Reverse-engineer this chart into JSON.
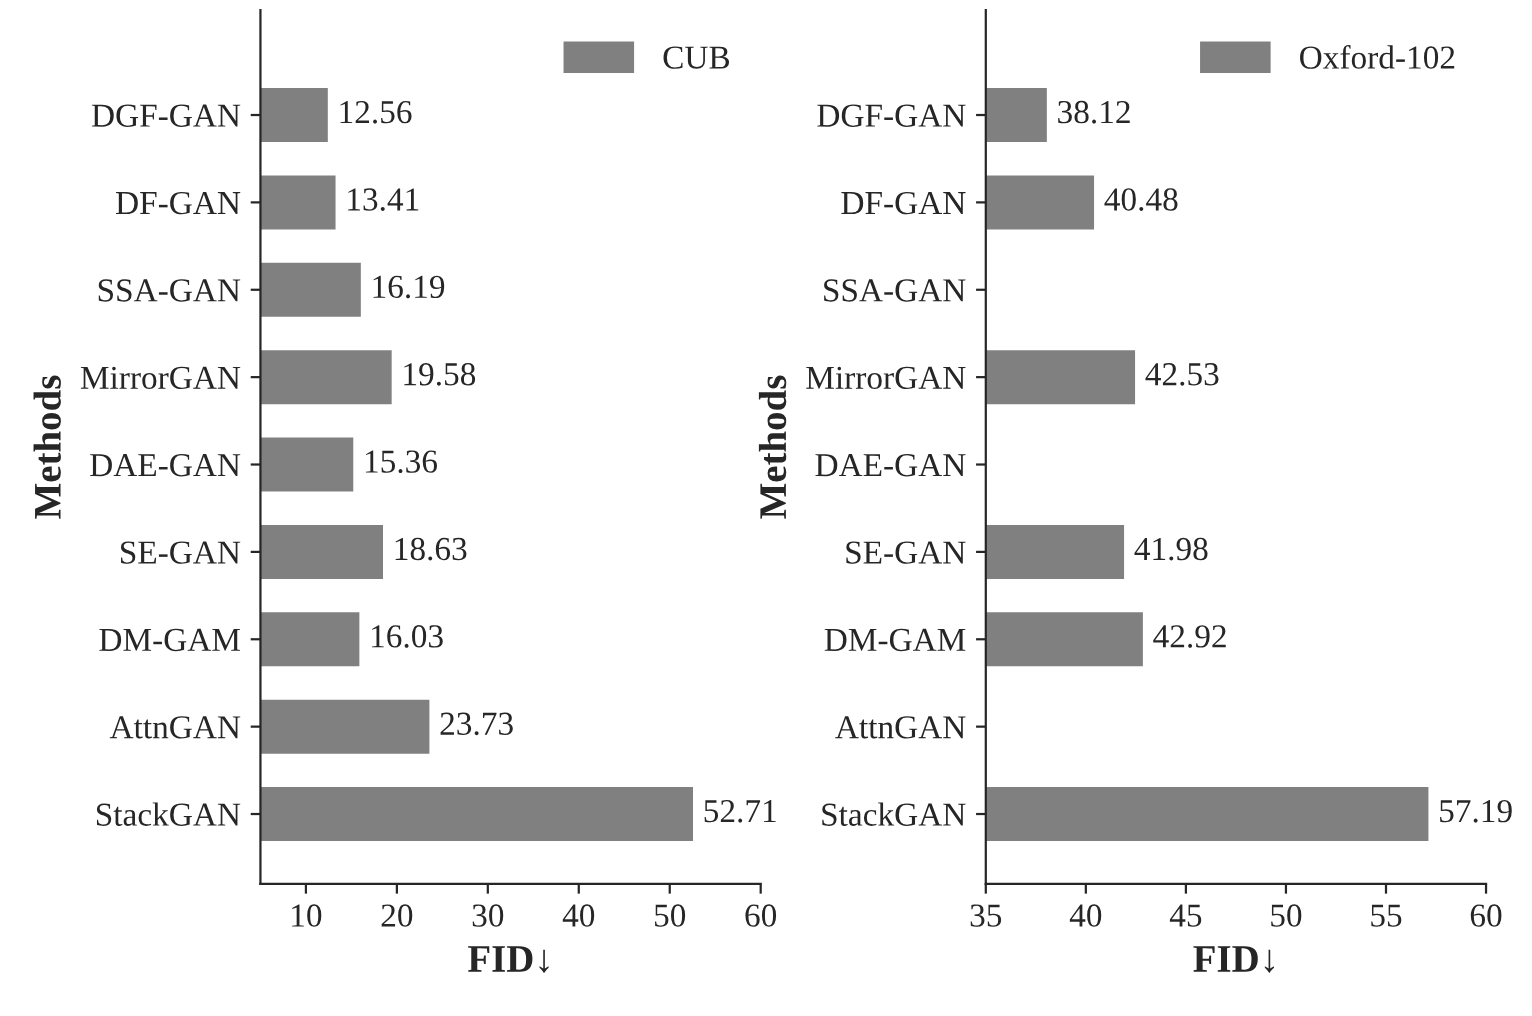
{
  "chart_data": [
    {
      "type": "bar",
      "orientation": "horizontal",
      "categories": [
        "DGF-GAN",
        "DF-GAN",
        "SSA-GAN",
        "MirrorGAN",
        "DAE-GAN",
        "SE-GAN",
        "DM-GAM",
        "AttnGAN",
        "StackGAN"
      ],
      "series": [
        {
          "name": "CUB",
          "color": "#808080",
          "values": [
            12.56,
            13.41,
            16.19,
            19.58,
            15.36,
            18.63,
            16.03,
            23.73,
            52.71
          ]
        }
      ],
      "xlim": [
        5,
        60
      ],
      "xticks": [
        10,
        20,
        30,
        40,
        50,
        60
      ],
      "xlabel": "FID↓",
      "ylabel": "Methods",
      "data_labels": true,
      "legend": "top right",
      "grid": false
    },
    {
      "type": "bar",
      "orientation": "horizontal",
      "categories": [
        "DGF-GAN",
        "DF-GAN",
        "SSA-GAN",
        "MirrorGAN",
        "DAE-GAN",
        "SE-GAN",
        "DM-GAM",
        "AttnGAN",
        "StackGAN"
      ],
      "series": [
        {
          "name": "Oxford-102",
          "color": "#808080",
          "values": [
            38.12,
            40.48,
            null,
            42.53,
            null,
            41.98,
            42.92,
            null,
            57.19
          ]
        }
      ],
      "xlim": [
        35,
        60
      ],
      "xticks": [
        35,
        40,
        45,
        50,
        55,
        60
      ],
      "xlabel": "FID↓",
      "ylabel": "Methods",
      "data_labels": true,
      "legend": "top right",
      "grid": false
    }
  ]
}
